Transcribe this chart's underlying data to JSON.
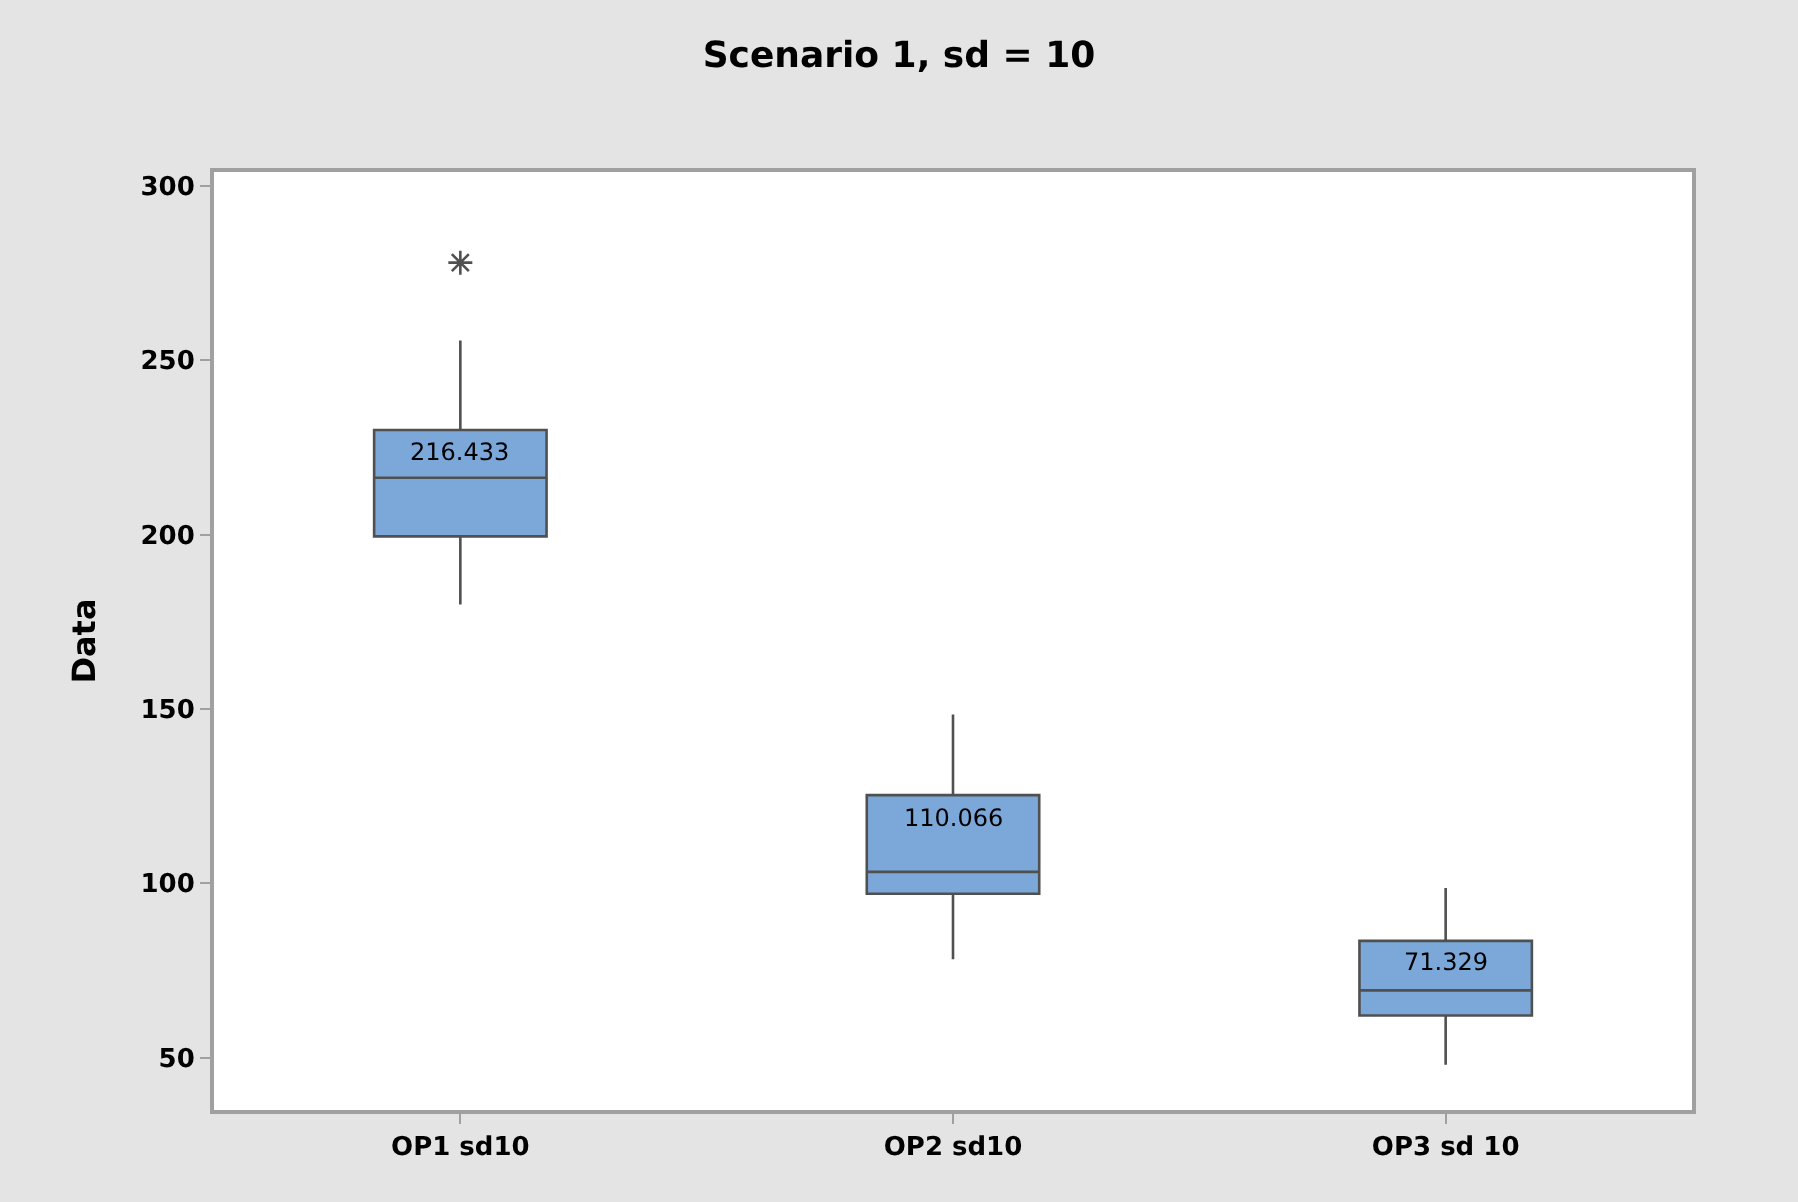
{
  "chart_data": {
    "type": "box",
    "title": "Scenario 1, sd = 10",
    "ylabel": "Data",
    "categories": [
      "OP1 sd10",
      "OP2 sd10",
      "OP3 sd 10"
    ],
    "color": "#7ba7d9",
    "boxes": [
      {
        "low": 180,
        "q1": 199.5,
        "median": 216.3,
        "q3": 230,
        "high": 255.7,
        "outliers": [
          278
        ]
      },
      {
        "low": 78.2,
        "q1": 97,
        "median": 103.3,
        "q3": 125.3,
        "high": 148.4
      },
      {
        "low": 48,
        "q1": 62.1,
        "median": 69.3,
        "q3": 83.5,
        "high": 98.7
      }
    ],
    "annotations": [
      "216.433",
      "110.066",
      "71.329"
    ],
    "ylim": [
      35,
      304
    ],
    "yticks": [
      50,
      100,
      150,
      200,
      250,
      300
    ]
  }
}
